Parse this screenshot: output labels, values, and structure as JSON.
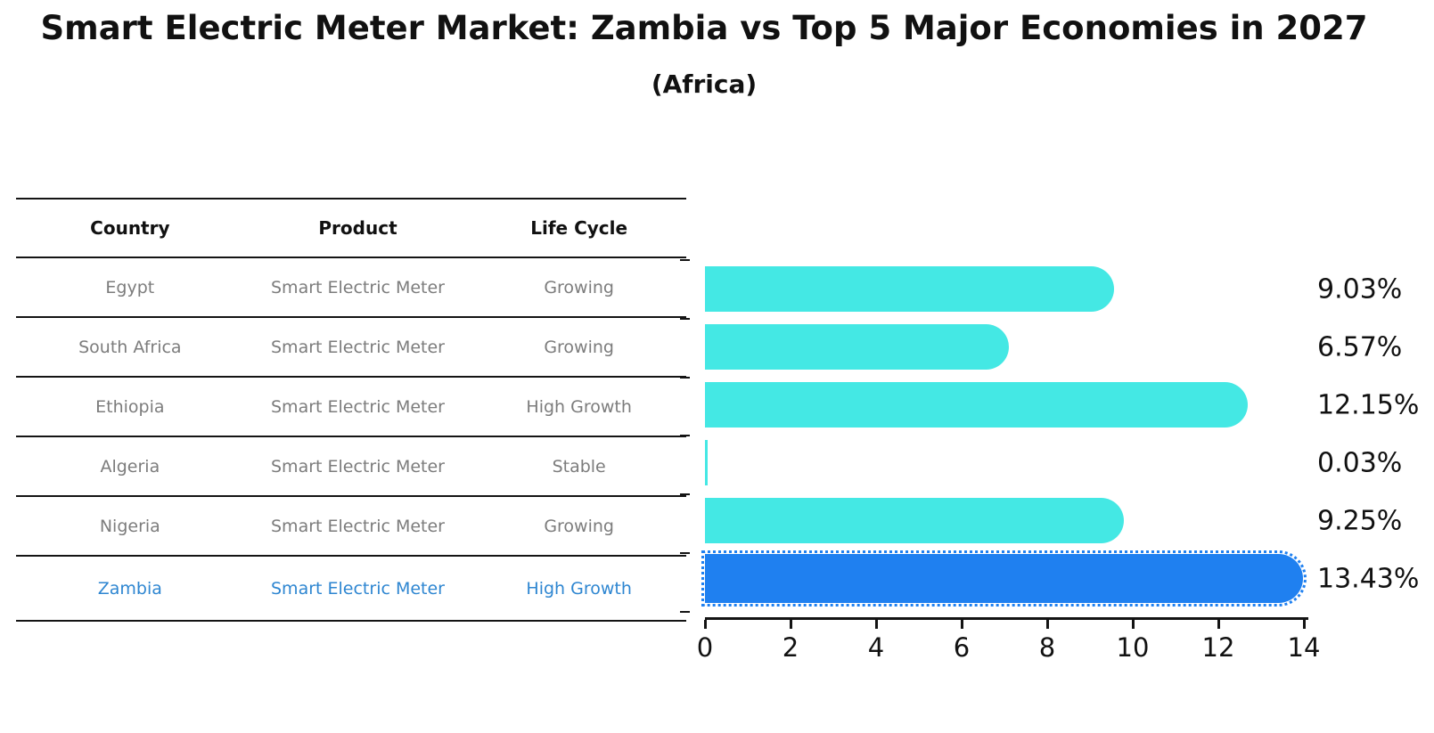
{
  "title": "Smart Electric Meter Market: Zambia vs Top 5 Major Economies in 2027",
  "subtitle": "(Africa)",
  "table": {
    "headers": [
      "Country",
      "Product",
      "Life Cycle"
    ],
    "rows": [
      {
        "country": "Egypt",
        "product": "Smart Electric Meter",
        "life_cycle": "Growing",
        "highlight": false
      },
      {
        "country": "South Africa",
        "product": "Smart Electric Meter",
        "life_cycle": "Growing",
        "highlight": false
      },
      {
        "country": "Ethiopia",
        "product": "Smart Electric Meter",
        "life_cycle": "High Growth",
        "highlight": false
      },
      {
        "country": "Algeria",
        "product": "Smart Electric Meter",
        "life_cycle": "Stable",
        "highlight": false
      },
      {
        "country": "Nigeria",
        "product": "Smart Electric Meter",
        "life_cycle": "Growing",
        "highlight": false
      },
      {
        "country": "Zambia",
        "product": "Smart Electric Meter",
        "life_cycle": "High Growth",
        "highlight": true
      }
    ]
  },
  "chart_data": {
    "type": "bar",
    "orientation": "horizontal",
    "title": "Smart Electric Meter Market: Zambia vs Top 5 Major Economies in 2027 (Africa)",
    "categories": [
      "Egypt",
      "South Africa",
      "Ethiopia",
      "Algeria",
      "Nigeria",
      "Zambia"
    ],
    "values": [
      9.03,
      6.57,
      12.15,
      0.03,
      9.25,
      13.43
    ],
    "value_labels": [
      "9.03%",
      "6.57%",
      "12.15%",
      "0.03%",
      "9.25%",
      "13.43%"
    ],
    "unit": "%",
    "xlim": [
      0,
      14
    ],
    "x_ticks": [
      0,
      2,
      4,
      6,
      8,
      10,
      12,
      14
    ],
    "grid": false,
    "legend": false,
    "highlight_index": 5
  },
  "colors": {
    "bar": "#44e8e4",
    "highlight_bar": "#1f80f0",
    "highlight_text": "#2e86d1",
    "row_text": "#7c7c7c",
    "axis": "#141414"
  }
}
